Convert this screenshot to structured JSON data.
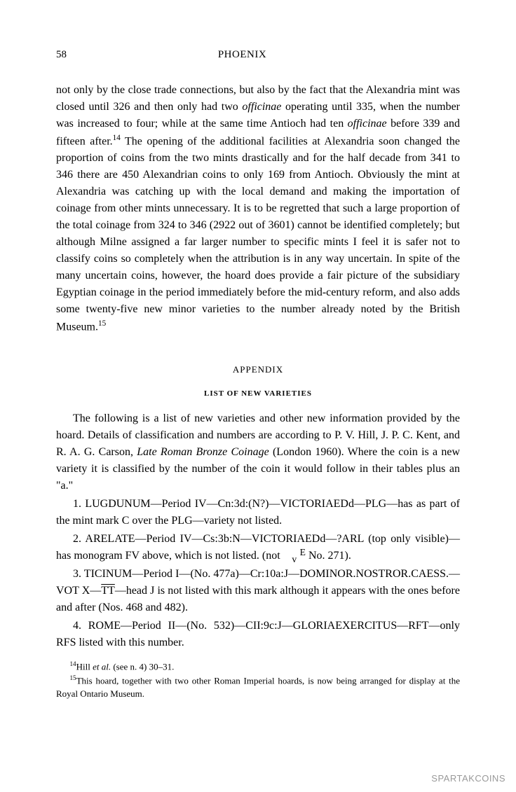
{
  "page": {
    "number": "58",
    "running_head": "PHOENIX"
  },
  "body": {
    "paragraph": "not only by the close trade connections, but also by the fact that the Alexandria mint was closed until 326 and then only had two <em>officinae</em> operating until 335, when the number was increased to four; while at the same time Antioch had ten <em>officinae</em> before 339 and fifteen after.<span class=\"sup\">14</span> The opening of the additional facilities at Alexandria soon changed the proportion of coins from the two mints drastically and for the half decade from 341 to 346 there are 450 Alexandrian coins to only 169 from Antioch. Obviously the mint at Alexandria was catching up with the local demand and making the importation of coinage from other mints unnecessary. It is to be regretted that such a large proportion of the total coinage from 324 to 346 (2922 out of 3601) cannot be identified completely; but although Milne assigned a far larger number to specific mints I feel it is safer not to classify coins so completely when the attribution is in any way uncertain. In spite of the many uncertain coins, however, the hoard does provide a fair picture of the subsidiary Egyptian coinage in the period immediately before the mid-century reform, and also adds some twenty-five new minor varieties to the number already noted by the British Museum.<span class=\"sup\">15</span>"
  },
  "appendix": {
    "title": "APPENDIX",
    "subtitle": "LIST OF NEW VARIETIES",
    "intro": "The following is a list of new varieties and other new information provided by the hoard. Details of classification and numbers are according to P. V. Hill, J. P. C. Kent, and R. A. G. Carson, <em>Late Roman Bronze Coinage</em> (London 1960). Where the coin is a new variety it is classified by the number of the coin it would follow in their tables plus an \"a.\"",
    "items": [
      "1. LUGDUNUM—Period IV—Cn:3d:(N?)—VICTORIAEDd—PLG—has as part of the mint mark C over the PLG—variety not listed.",
      "2. ARELATE—Period IV—Cs:3b:N—VICTORIAEDd—?ARL (top only visible)—has monogram FV above, which is not listed. (not <span class=\"evert\">E<br>v</span> No. 271).",
      "3. TICINUM—Period I—(No. 477a)—Cr:10a:J—DOMINOR.NOSTROR.CAESS.—VOT X—<span class=\"overline\">TT</span>—head J is not listed with this mark although it appears with the ones before and after (Nos. 468 and 482).",
      "4. ROME—Period II—(No. 532)—CII:9c:J—GLORIAEXERCITUS—RFT—only RFS listed with this number."
    ]
  },
  "footnotes": [
    "<span class=\"sup\">14</span>Hill <em>et al.</em> (see n. 4) 30–31.",
    "<span class=\"sup\">15</span>This hoard, together with two other Roman Imperial hoards, is now being arranged for display at the Royal Ontario Museum."
  ],
  "watermark": "SPARTAKCOINS",
  "colors": {
    "background": "#ffffff",
    "text": "#000000",
    "watermark": "#999999"
  },
  "typography": {
    "body_fontsize": 16,
    "body_lineheight": 1.5,
    "footnote_fontsize": 13,
    "appendix_title_fontsize": 13,
    "appendix_subtitle_fontsize": 11
  }
}
